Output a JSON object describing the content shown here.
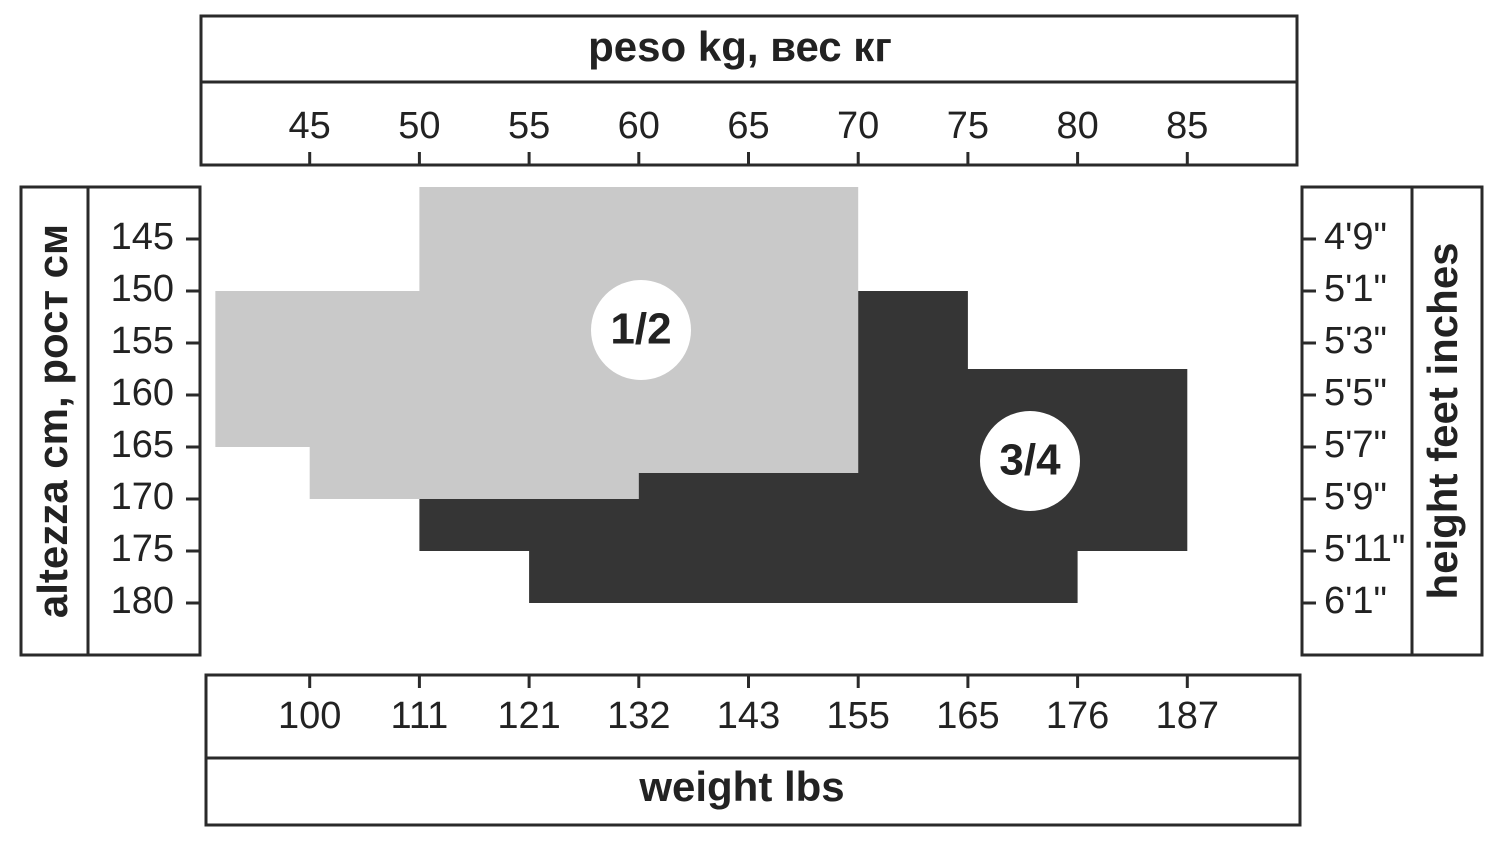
{
  "chart_data": {
    "type": "size-regions",
    "title": "peso kg, вес кг",
    "x2label": "weight lbs",
    "ylabel": "altezza cm, рост см",
    "y2label": "height feet inches",
    "xlim": [
      40,
      90
    ],
    "xticks": [
      45,
      50,
      55,
      60,
      65,
      70,
      75,
      80,
      85
    ],
    "x2ticks": [
      100,
      111,
      121,
      132,
      143,
      155,
      165,
      176,
      187
    ],
    "ylim": [
      140,
      185
    ],
    "yticks": [
      145,
      150,
      155,
      160,
      165,
      170,
      175,
      180
    ],
    "y2ticks": [
      "4'9\"",
      "5'1\"",
      "5'3\"",
      "5'5\"",
      "5'7\"",
      "5'9\"",
      "5'11\"",
      "6'1\""
    ],
    "regions": [
      {
        "name": "1/2",
        "color": "#c9c9c9",
        "x": [
          50,
          70,
          70,
          60,
          60,
          45,
          45,
          40.7,
          40.7,
          50
        ],
        "y": [
          140,
          140,
          167.5,
          167.5,
          170,
          170,
          165,
          165,
          150,
          150
        ]
      },
      {
        "name": "3/4",
        "color": "#353535",
        "x": [
          70,
          75,
          75,
          85,
          85,
          80,
          80,
          55,
          55,
          50,
          50,
          60,
          60,
          70
        ],
        "y": [
          150,
          150,
          157.5,
          157.5,
          175,
          175,
          180,
          180,
          175,
          175,
          170,
          170,
          167.5,
          167.5
        ]
      }
    ]
  }
}
